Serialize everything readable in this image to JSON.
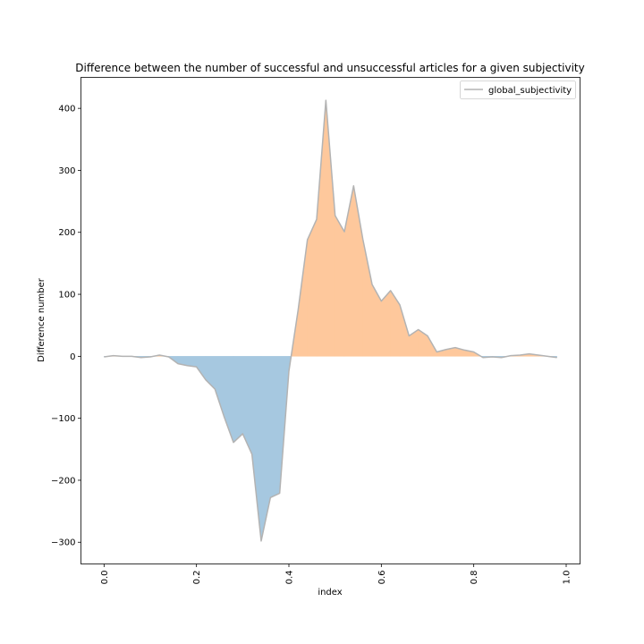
{
  "chart_data": {
    "type": "area",
    "title": "Difference between the number of successful and unsuccessful articles for a given subjectivity",
    "xlabel": "index",
    "ylabel": "Difference number",
    "xlim": [
      -0.05,
      1.03
    ],
    "ylim": [
      -335,
      450
    ],
    "x_ticks": [
      0.0,
      0.2,
      0.4,
      0.6,
      0.8,
      1.0
    ],
    "x_tick_labels": [
      "0.0",
      "0.2",
      "0.4",
      "0.6",
      "0.8",
      "1.0"
    ],
    "y_ticks": [
      -300,
      -200,
      -100,
      0,
      100,
      200,
      300,
      400
    ],
    "y_tick_labels": [
      "−300",
      "−200",
      "−100",
      "0",
      "100",
      "200",
      "300",
      "400"
    ],
    "grid": false,
    "legend_position": "top-right",
    "series": [
      {
        "name": "global_subjectivity",
        "x": [
          0.0,
          0.02,
          0.04,
          0.06,
          0.08,
          0.1,
          0.12,
          0.14,
          0.16,
          0.18,
          0.2,
          0.22,
          0.24,
          0.26,
          0.28,
          0.3,
          0.32,
          0.34,
          0.36,
          0.38,
          0.4,
          0.42,
          0.44,
          0.46,
          0.48,
          0.5,
          0.52,
          0.54,
          0.56,
          0.58,
          0.6,
          0.62,
          0.64,
          0.66,
          0.68,
          0.7,
          0.72,
          0.74,
          0.76,
          0.78,
          0.8,
          0.82,
          0.84,
          0.86,
          0.88,
          0.9,
          0.92,
          0.94,
          0.96,
          0.98
        ],
        "values": [
          -1,
          1,
          0,
          0,
          -2,
          -1,
          2,
          -1,
          -12,
          -15,
          -17,
          -38,
          -53,
          -98,
          -139,
          -125,
          -158,
          -298,
          -228,
          -221,
          -24,
          75,
          188,
          221,
          413,
          227,
          201,
          275,
          189,
          116,
          89,
          106,
          83,
          33,
          43,
          33,
          7,
          11,
          14,
          10,
          7,
          -2,
          -1,
          -2,
          1,
          2,
          4,
          2,
          0,
          -2
        ]
      }
    ],
    "colors": {
      "line": "#b3b3b3",
      "fill_negative": "#a6c8e0",
      "fill_positive": "#fec89c",
      "axes": "#000000",
      "legend_border": "#cccccc"
    }
  }
}
